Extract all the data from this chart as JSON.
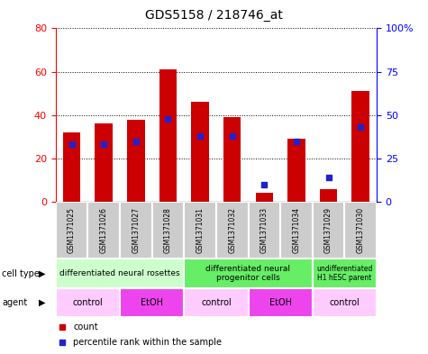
{
  "title": "GDS5158 / 218746_at",
  "samples": [
    "GSM1371025",
    "GSM1371026",
    "GSM1371027",
    "GSM1371028",
    "GSM1371031",
    "GSM1371032",
    "GSM1371033",
    "GSM1371034",
    "GSM1371029",
    "GSM1371030"
  ],
  "counts": [
    32,
    36,
    38,
    61,
    46,
    39,
    4,
    29,
    6,
    51
  ],
  "percentiles": [
    33,
    33,
    35,
    48,
    38,
    38,
    10,
    35,
    14,
    43
  ],
  "ylim_left": [
    0,
    80
  ],
  "ylim_right": [
    0,
    100
  ],
  "yticks_left": [
    0,
    20,
    40,
    60,
    80
  ],
  "yticks_right": [
    0,
    25,
    50,
    75,
    100
  ],
  "ytick_labels_right": [
    "0",
    "25",
    "50",
    "75",
    "100%"
  ],
  "bar_color": "#cc0000",
  "dot_color": "#2222cc",
  "background_color": "#ffffff",
  "cell_type_groups": [
    {
      "label": "differentiated neural rosettes",
      "start": 0,
      "end": 4,
      "color": "#ccffcc"
    },
    {
      "label": "differentiated neural\nprogenitor cells",
      "start": 4,
      "end": 8,
      "color": "#66ee66"
    },
    {
      "label": "undifferentiated\nH1 hESC parent",
      "start": 8,
      "end": 10,
      "color": "#66ee66"
    }
  ],
  "agent_groups": [
    {
      "label": "control",
      "start": 0,
      "end": 2,
      "color": "#ffccff"
    },
    {
      "label": "EtOH",
      "start": 2,
      "end": 4,
      "color": "#ee44ee"
    },
    {
      "label": "control",
      "start": 4,
      "end": 6,
      "color": "#ffccff"
    },
    {
      "label": "EtOH",
      "start": 6,
      "end": 8,
      "color": "#ee44ee"
    },
    {
      "label": "control",
      "start": 8,
      "end": 10,
      "color": "#ffccff"
    }
  ],
  "sample_bg_color": "#cccccc",
  "count_legend": "count",
  "percentile_legend": "percentile rank within the sample"
}
